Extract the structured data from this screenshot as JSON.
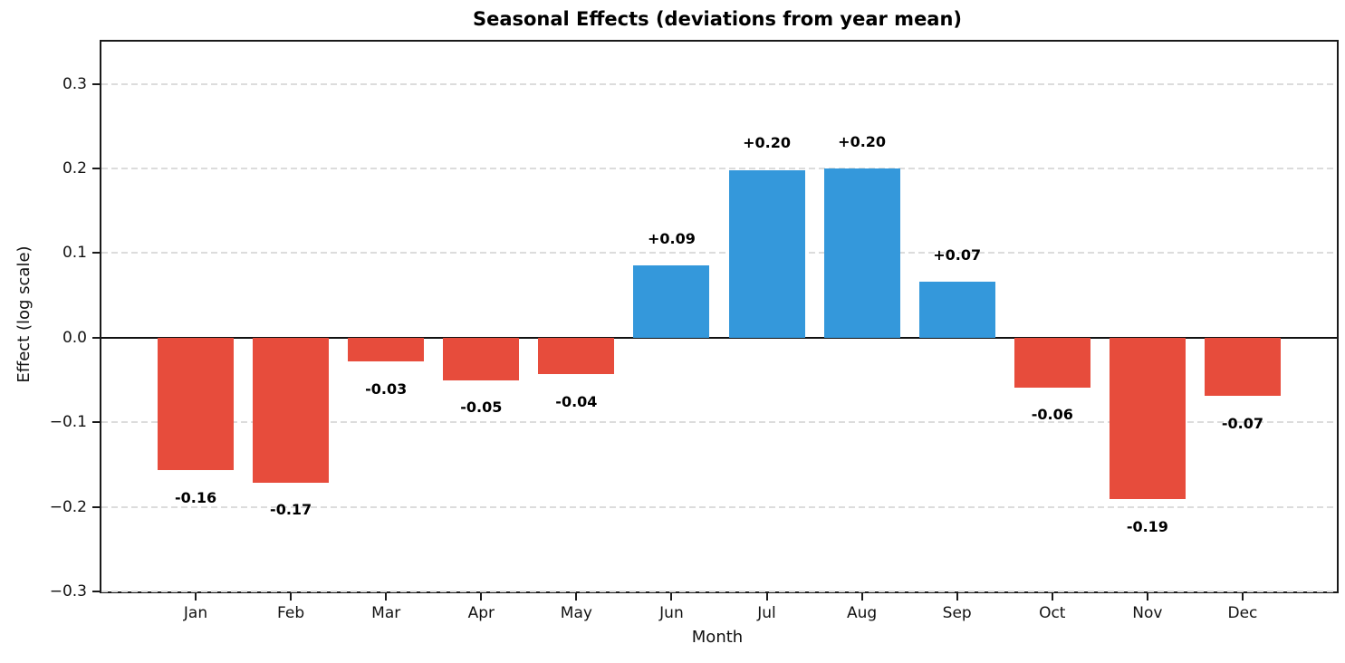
{
  "chart_data": {
    "type": "bar",
    "title": "Seasonal Effects (deviations from year mean)",
    "xlabel": "Month",
    "ylabel": "Effect (log scale)",
    "categories": [
      "Jan",
      "Feb",
      "Mar",
      "Apr",
      "May",
      "Jun",
      "Jul",
      "Aug",
      "Sep",
      "Oct",
      "Nov",
      "Dec"
    ],
    "values": [
      -0.157,
      -0.171,
      -0.028,
      -0.05,
      -0.043,
      0.085,
      0.198,
      0.2,
      0.066,
      -0.059,
      -0.191,
      -0.069
    ],
    "bar_labels": [
      "-0.16",
      "-0.17",
      "-0.03",
      "-0.05",
      "-0.04",
      "+0.09",
      "+0.20",
      "+0.20",
      "+0.07",
      "-0.06",
      "-0.19",
      "-0.07"
    ],
    "positive_color": "#3498db",
    "negative_color": "#e74c3c",
    "ylim": [
      -0.3,
      0.35
    ],
    "yticks": [
      0.3,
      0.2,
      0.1,
      0.0,
      -0.1,
      -0.2,
      -0.3
    ],
    "ytick_labels": [
      "0.3",
      "0.2",
      "0.1",
      "0.0",
      "−0.1",
      "−0.2",
      "−0.3"
    ],
    "grid": "horizontal-dashed",
    "legend": "none",
    "zero_line": true,
    "spines": "full-box"
  }
}
